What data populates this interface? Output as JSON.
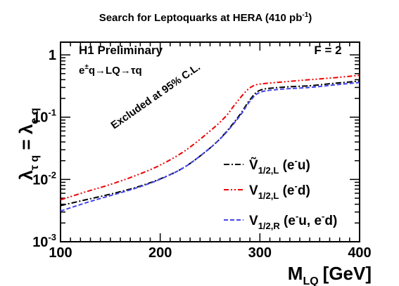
{
  "chart_data": {
    "type": "line",
    "title": "Search for Leptoquarks at HERA (410 pb",
    "title_sup": "-1",
    "title_end": ")",
    "xlabel": "M",
    "xlabel_sub": "LQ",
    "xlabel_unit": "[GeV]",
    "ylabel": {
      "lambda": "λ",
      "sub1": "τ q",
      "eq": " = ",
      "lambda2": "λ",
      "sub2": "e q"
    },
    "xlim": [
      100,
      400
    ],
    "ylim": [
      0.001,
      1.6
    ],
    "yscale": "log",
    "grid": false,
    "x_ticks": [
      {
        "value": 100,
        "label": "100"
      },
      {
        "value": 200,
        "label": "200"
      },
      {
        "value": 300,
        "label": "300"
      },
      {
        "value": 400,
        "label": "400"
      }
    ],
    "y_ticks": [
      {
        "value": 1,
        "base": "1",
        "exp": ""
      },
      {
        "value": 0.1,
        "base": "10",
        "exp": "-1"
      },
      {
        "value": 0.01,
        "base": "10",
        "exp": "-2"
      },
      {
        "value": 0.001,
        "base": "10",
        "exp": "-3"
      }
    ],
    "annotations": {
      "experiment": "H1 Preliminary",
      "process": [
        "e",
        "±",
        "q",
        "→",
        "LQ",
        "→",
        "τq"
      ],
      "fermion_number": "F = 2",
      "excluded": "Excluded at 95% C.L."
    },
    "legend_position": "bottom-right",
    "series": [
      {
        "name": "Ṽ",
        "legend_sub": "1/2,L",
        "legend_paren": "(e",
        "legend_sup": "-",
        "legend_rest": "u)",
        "color": "#000000",
        "dash": "dashdot",
        "x": [
          100,
          125,
          150,
          175,
          200,
          225,
          250,
          265,
          280,
          290,
          300,
          320,
          350,
          375,
          400
        ],
        "y": [
          0.0038,
          0.0047,
          0.0058,
          0.0074,
          0.0102,
          0.016,
          0.032,
          0.055,
          0.11,
          0.19,
          0.27,
          0.3,
          0.32,
          0.35,
          0.38
        ]
      },
      {
        "name": "V",
        "legend_sub": "1/2,L",
        "legend_paren": "(e",
        "legend_sup": "-",
        "legend_rest": "d)",
        "color": "#ee0000",
        "dash": "dashdotdot",
        "x": [
          100,
          125,
          150,
          175,
          200,
          225,
          250,
          265,
          275,
          285,
          292,
          300,
          325,
          350,
          375,
          400
        ],
        "y": [
          0.0047,
          0.0063,
          0.0083,
          0.0115,
          0.017,
          0.029,
          0.06,
          0.1,
          0.16,
          0.25,
          0.31,
          0.34,
          0.37,
          0.4,
          0.43,
          0.47
        ]
      },
      {
        "name": "V",
        "legend_sub": "1/2,R",
        "legend_paren": "(e",
        "legend_sup": "-",
        "legend_rest": "u, e",
        "legend_sup2": "-",
        "legend_rest2": "d)",
        "color": "#4444ee",
        "dash": "dashed",
        "x": [
          100,
          125,
          150,
          175,
          200,
          225,
          250,
          265,
          280,
          290,
          300,
          320,
          350,
          375,
          400
        ],
        "y": [
          0.0031,
          0.0042,
          0.0055,
          0.0072,
          0.0101,
          0.016,
          0.032,
          0.054,
          0.105,
          0.18,
          0.25,
          0.28,
          0.3,
          0.33,
          0.36
        ]
      }
    ]
  }
}
